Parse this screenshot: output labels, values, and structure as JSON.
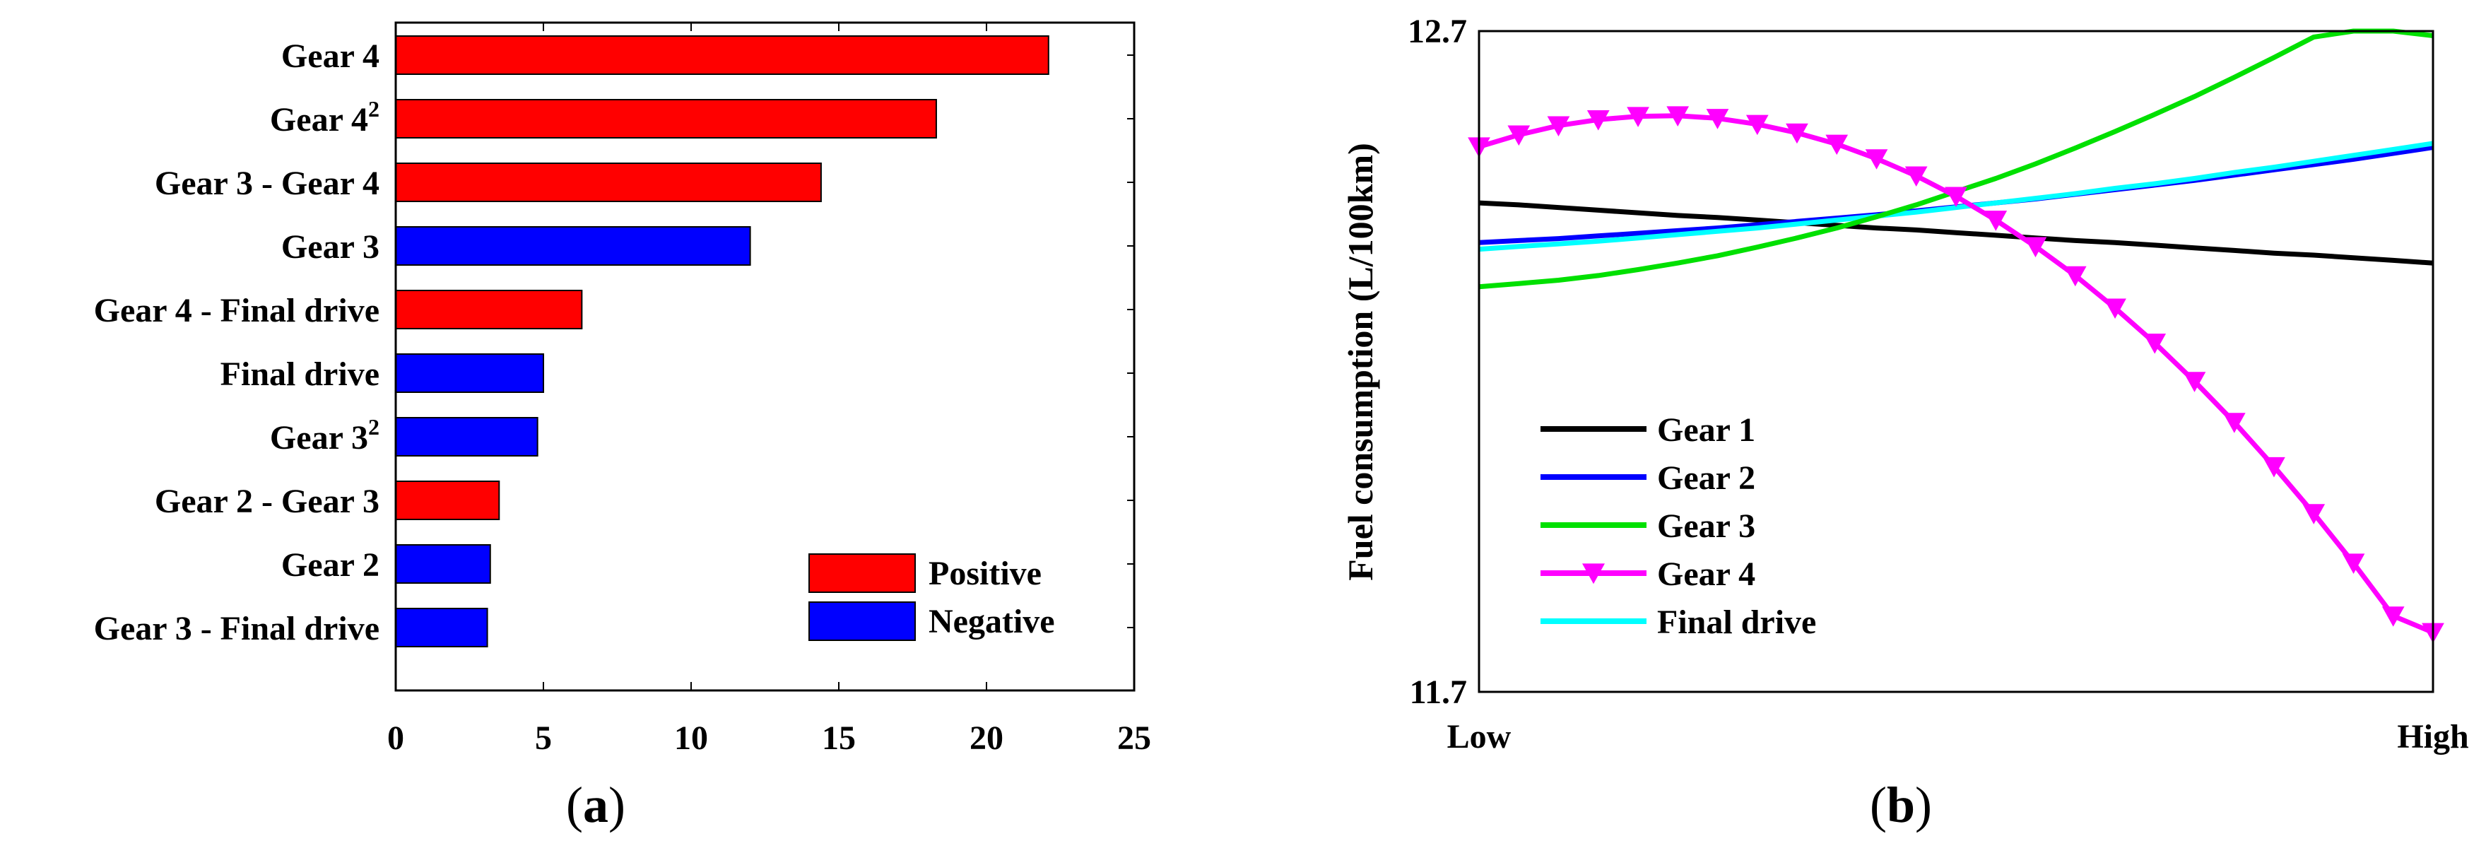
{
  "chart_data": [
    {
      "type": "bar",
      "orientation": "horizontal",
      "panel_label": "a",
      "categories": [
        {
          "label": "Gear 4",
          "sup": ""
        },
        {
          "label": "Gear 4",
          "sup": "2"
        },
        {
          "label": "Gear 3 - Gear 4",
          "sup": ""
        },
        {
          "label": "Gear 3",
          "sup": ""
        },
        {
          "label": "Gear 4 - Final drive",
          "sup": ""
        },
        {
          "label": "Final drive",
          "sup": ""
        },
        {
          "label": "Gear 3",
          "sup": "2"
        },
        {
          "label": "Gear 2 - Gear 3",
          "sup": ""
        },
        {
          "label": "Gear 2",
          "sup": ""
        },
        {
          "label": "Gear 3 - Final drive",
          "sup": ""
        }
      ],
      "values": [
        22.1,
        18.3,
        14.4,
        12.0,
        6.3,
        5.0,
        4.8,
        3.5,
        3.2,
        3.1
      ],
      "signs": [
        "Positive",
        "Positive",
        "Positive",
        "Negative",
        "Positive",
        "Negative",
        "Negative",
        "Positive",
        "Negative",
        "Negative"
      ],
      "xlim": [
        0,
        25
      ],
      "xticks": [
        "0",
        "5",
        "10",
        "15",
        "20",
        "25"
      ],
      "legend": [
        {
          "name": "Positive",
          "color": "#ff0000"
        },
        {
          "name": "Negative",
          "color": "#0000ff"
        }
      ],
      "legend_position": "bottom-right"
    },
    {
      "type": "line",
      "panel_label": "b",
      "ylabel": "Fuel consumption (L/100km)",
      "ylim": [
        11.7,
        12.7
      ],
      "yticks": [
        "12.7",
        "11.7"
      ],
      "xticks": [
        "Low",
        "High"
      ],
      "x": [
        0,
        0.0417,
        0.0833,
        0.125,
        0.1667,
        0.2083,
        0.25,
        0.2917,
        0.3333,
        0.375,
        0.4167,
        0.4583,
        0.5,
        0.5417,
        0.5833,
        0.625,
        0.6667,
        0.7083,
        0.75,
        0.7917,
        0.8333,
        0.875,
        0.9167,
        0.9583,
        1
      ],
      "series": [
        {
          "name": "Gear 1",
          "color": "#000000",
          "marker": "none",
          "y": [
            12.44,
            12.437,
            12.433,
            12.429,
            12.425,
            12.421,
            12.418,
            12.414,
            12.41,
            12.406,
            12.402,
            12.399,
            12.395,
            12.391,
            12.387,
            12.383,
            12.38,
            12.376,
            12.372,
            12.368,
            12.364,
            12.361,
            12.357,
            12.353,
            12.349
          ]
        },
        {
          "name": "Gear 2",
          "color": "#0000ff",
          "marker": "none",
          "y": [
            12.38,
            12.383,
            12.386,
            12.39,
            12.394,
            12.398,
            12.402,
            12.407,
            12.412,
            12.417,
            12.422,
            12.428,
            12.434,
            12.44,
            12.446,
            12.453,
            12.46,
            12.467,
            12.474,
            12.482,
            12.49,
            12.498,
            12.506,
            12.515,
            12.524
          ]
        },
        {
          "name": "Gear 3",
          "color": "#00e000",
          "marker": "none",
          "y": [
            12.313,
            12.318,
            12.323,
            12.33,
            12.339,
            12.349,
            12.36,
            12.373,
            12.387,
            12.402,
            12.419,
            12.437,
            12.457,
            12.477,
            12.499,
            12.523,
            12.548,
            12.574,
            12.601,
            12.63,
            12.66,
            12.691,
            12.724,
            12.758,
            12.693
          ]
        },
        {
          "name": "Gear 4",
          "color": "#ff00ff",
          "marker": "triangle-down",
          "y": [
            12.525,
            12.543,
            12.557,
            12.566,
            12.571,
            12.572,
            12.568,
            12.559,
            12.546,
            12.529,
            12.507,
            12.481,
            12.45,
            12.414,
            12.374,
            12.33,
            12.281,
            12.228,
            12.17,
            12.108,
            12.041,
            11.97,
            11.895,
            11.815,
            11.79
          ]
        },
        {
          "name": "Final drive",
          "color": "#00ffff",
          "marker": "none",
          "y": [
            12.37,
            12.374,
            12.378,
            12.382,
            12.387,
            12.392,
            12.397,
            12.402,
            12.408,
            12.414,
            12.42,
            12.426,
            12.433,
            12.44,
            12.447,
            12.454,
            12.462,
            12.469,
            12.477,
            12.486,
            12.494,
            12.503,
            12.512,
            12.521,
            12.53
          ]
        }
      ],
      "legend_position": "lower-left"
    }
  ]
}
